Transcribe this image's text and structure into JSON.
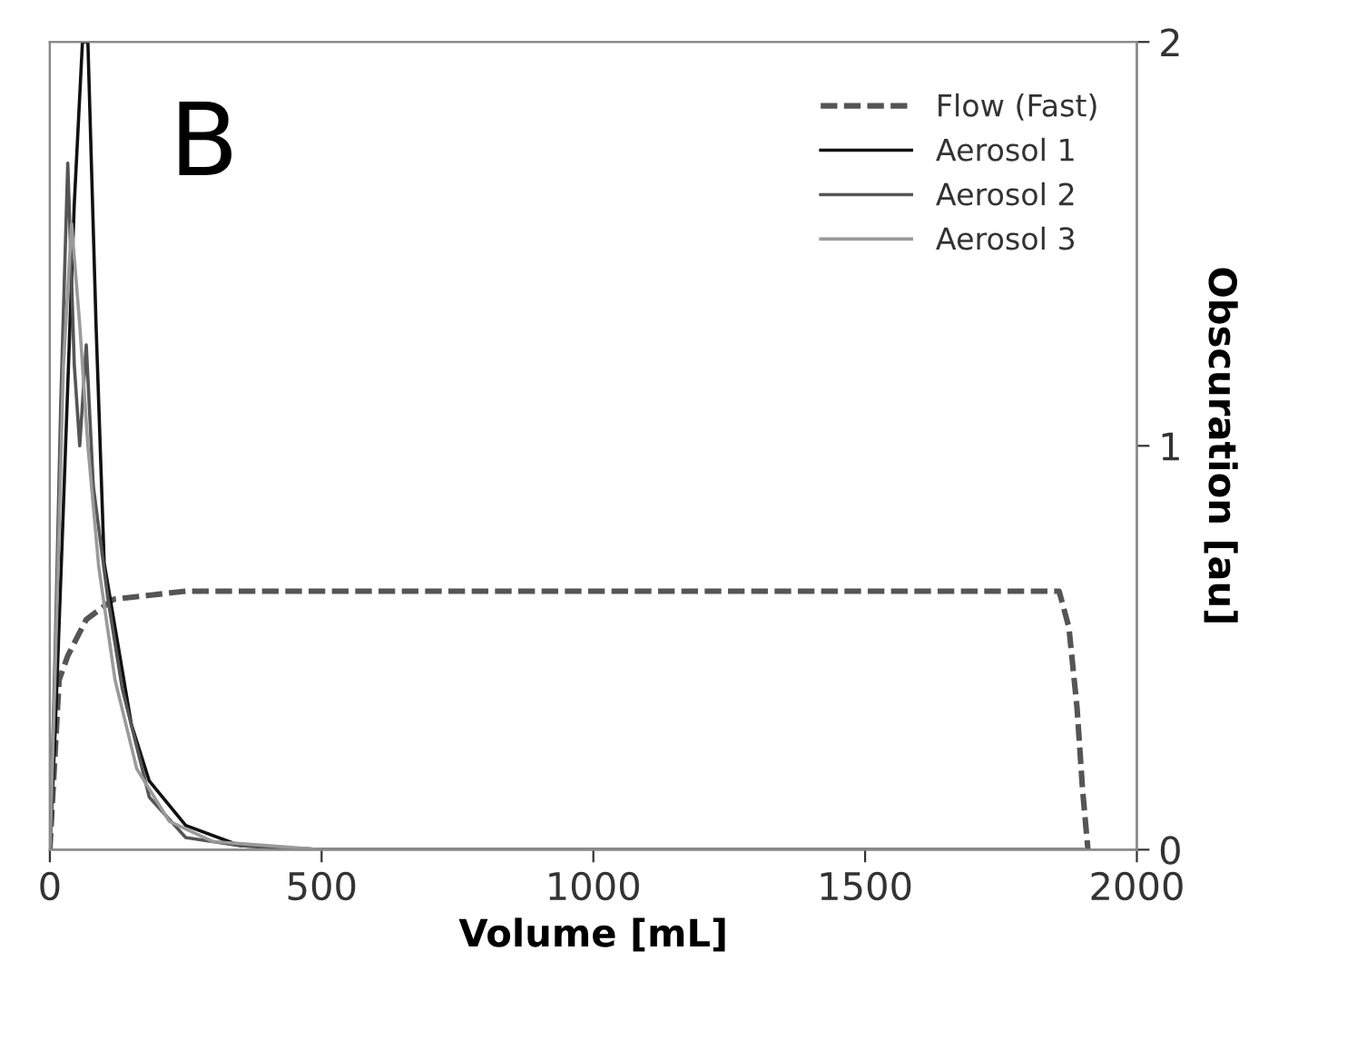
{
  "chart_data": {
    "type": "line",
    "xlabel": "Volume [mL]",
    "y2label": "Obscuration [au]",
    "annotations": [
      "B"
    ],
    "xlim": [
      0,
      2000
    ],
    "xticks": [
      0,
      500,
      1000,
      1500,
      2000
    ],
    "y2lim": [
      0,
      2
    ],
    "y2ticks": [
      0,
      1,
      2
    ],
    "grid": false,
    "legend": "top right",
    "marker": "none",
    "series": [
      {
        "name": "Flow (Fast)",
        "color": "#555555",
        "line_style": "dashed",
        "axis": "y2",
        "x": [
          0,
          17,
          33,
          67,
          117,
          183,
          250,
          600,
          1200,
          1857,
          1875,
          1890,
          1900,
          1910
        ],
        "values": [
          0,
          0.42,
          0.48,
          0.57,
          0.62,
          0.63,
          0.64,
          0.64,
          0.64,
          0.64,
          0.55,
          0.35,
          0.15,
          0
        ]
      },
      {
        "name": "Aerosol 1",
        "color": "#111111",
        "line_style": "solid",
        "axis": "y2",
        "x": [
          0,
          10,
          25,
          45,
          60,
          70,
          85,
          100,
          150,
          183,
          250,
          350,
          500,
          1000,
          1500,
          1900
        ],
        "values": [
          0,
          0.3,
          0.85,
          1.6,
          2.0,
          2.0,
          1.3,
          0.71,
          0.31,
          0.17,
          0.06,
          0.01,
          0,
          0,
          0,
          0
        ]
      },
      {
        "name": "Aerosol 2",
        "color": "#555555",
        "line_style": "solid",
        "axis": "y2",
        "x": [
          0,
          10,
          20,
          33,
          45,
          55,
          67,
          80,
          107,
          133,
          183,
          250,
          350,
          500,
          1000,
          1500,
          1900
        ],
        "values": [
          0,
          0.5,
          1.1,
          1.7,
          1.2,
          1.0,
          1.25,
          0.9,
          0.62,
          0.4,
          0.13,
          0.03,
          0.01,
          0,
          0,
          0,
          0
        ]
      },
      {
        "name": "Aerosol 3",
        "color": "#9a9a9a",
        "line_style": "solid",
        "axis": "y2",
        "x": [
          0,
          10,
          25,
          40,
          55,
          70,
          90,
          120,
          160,
          220,
          300,
          500,
          1000,
          1500,
          1900
        ],
        "values": [
          0,
          0.45,
          1.2,
          1.55,
          1.3,
          1.0,
          0.7,
          0.42,
          0.2,
          0.07,
          0.02,
          0,
          0,
          0,
          0
        ]
      }
    ]
  }
}
